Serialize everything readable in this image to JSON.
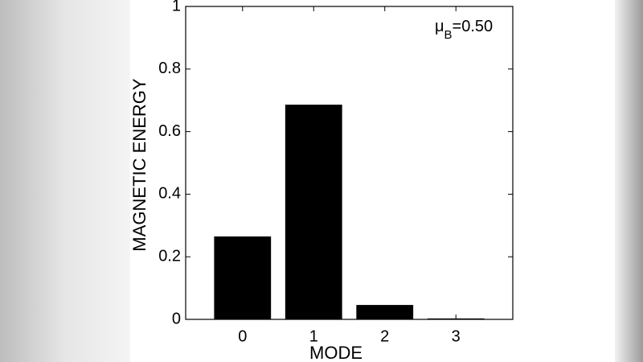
{
  "chart_data": {
    "type": "bar",
    "x_label": "MODE",
    "y_label": "MAGNETIC ENERGY",
    "annotation": {
      "symbol": "μ",
      "subscript": "B",
      "text": "=0.50"
    },
    "x": [
      0,
      1,
      2,
      3
    ],
    "values": [
      0.265,
      0.686,
      0.046,
      0.003
    ],
    "color": "#000000",
    "xlim": [
      -0.8,
      3.8
    ],
    "xticks": [
      0,
      1,
      2,
      3
    ],
    "ylim": [
      0,
      1
    ],
    "yticks": [
      0,
      0.2,
      0.4,
      0.6,
      0.8,
      1
    ]
  }
}
